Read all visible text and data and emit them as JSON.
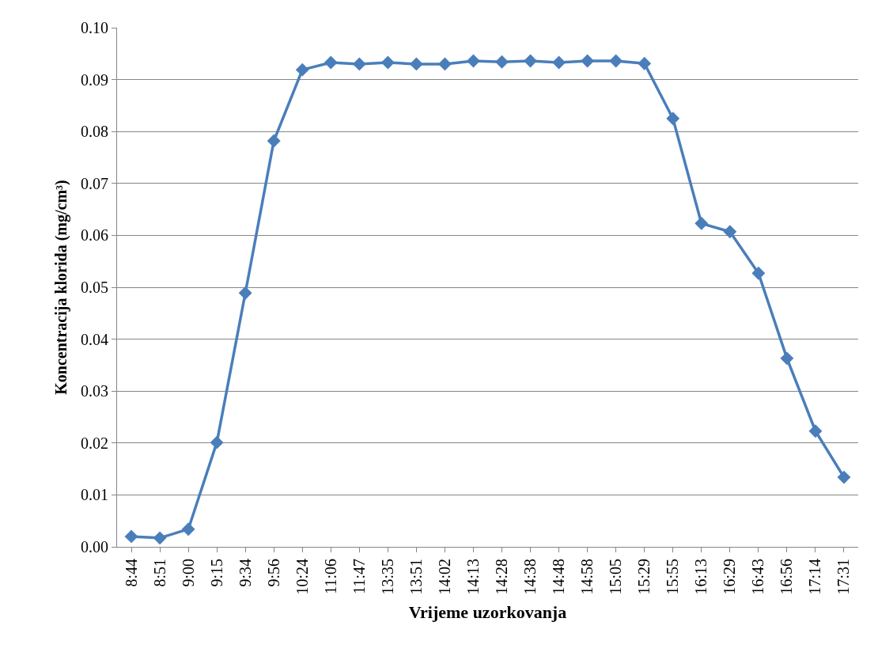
{
  "chart_data": {
    "type": "line",
    "xlabel": "Vrijeme uzorkovanja",
    "ylabel": "Koncentracija klorida (mg/cm³)",
    "categories": [
      "8:44",
      "8:51",
      "9:00",
      "9:15",
      "9:34",
      "9:56",
      "10:24",
      "11:06",
      "11:47",
      "13:35",
      "13:51",
      "14:02",
      "14:13",
      "14:28",
      "14:38",
      "14:48",
      "14:58",
      "15:05",
      "15:29",
      "15:55",
      "16:13",
      "16:29",
      "16:43",
      "16:56",
      "17:14",
      "17:31"
    ],
    "series": [
      {
        "color": "#4a7ebb",
        "values": [
          0.002,
          0.0017,
          0.0034,
          0.0201,
          0.0489,
          0.0782,
          0.0919,
          0.0933,
          0.093,
          0.0933,
          0.093,
          0.093,
          0.0936,
          0.0934,
          0.0936,
          0.0933,
          0.0936,
          0.0936,
          0.0931,
          0.0825,
          0.0623,
          0.0607,
          0.0527,
          0.0363,
          0.0223,
          0.0134
        ]
      }
    ],
    "ylim": [
      0,
      0.1
    ],
    "yticks": [
      {
        "value": 0,
        "label": "0.00"
      },
      {
        "value": 0.01,
        "label": "0.01"
      },
      {
        "value": 0.02,
        "label": "0.02"
      },
      {
        "value": 0.03,
        "label": "0.03"
      },
      {
        "value": 0.04,
        "label": "0.04"
      },
      {
        "value": 0.05,
        "label": "0.05"
      },
      {
        "value": 0.06,
        "label": "0.06"
      },
      {
        "value": 0.07,
        "label": "0.07"
      },
      {
        "value": 0.08,
        "label": "0.08"
      },
      {
        "value": 0.09,
        "label": "0.09"
      },
      {
        "value": 0.1,
        "label": "0.10"
      }
    ],
    "grid": "y",
    "marker": "diamond",
    "line_style": "solid"
  }
}
